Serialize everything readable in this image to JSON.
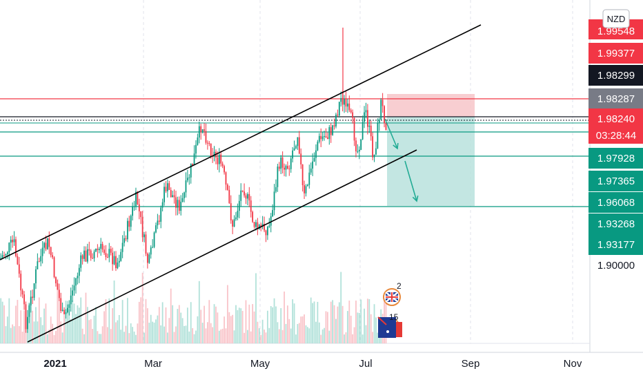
{
  "chart_data": {
    "type": "candlestick",
    "currency_badge": "NZD",
    "x_axis": {
      "tick_labels": [
        "2021",
        "Mar",
        "May",
        "Jul",
        "Sep",
        "Nov"
      ]
    },
    "price_labels": [
      {
        "text": "1.99548",
        "bg": "#f23645",
        "fg": "#ffffff"
      },
      {
        "text": "1.99377",
        "bg": "#f23645",
        "fg": "#ffffff"
      },
      {
        "text": "1.98299",
        "bg": "#131722",
        "fg": "#ffffff"
      },
      {
        "text": "1.98287",
        "bg": "#787b86",
        "fg": "#ffffff"
      },
      {
        "text": "1.98240",
        "bg": "#f23645",
        "fg": "#ffffff"
      },
      {
        "text": "03:28:44",
        "bg": "#f23645",
        "fg": "#ffffff"
      },
      {
        "text": "1.97928",
        "bg": "#089981",
        "fg": "#ffffff"
      },
      {
        "text": "1.97365",
        "bg": "#089981",
        "fg": "#ffffff"
      },
      {
        "text": "1.96068",
        "bg": "#089981",
        "fg": "#ffffff"
      },
      {
        "text": "1.93268",
        "bg": "#089981",
        "fg": "#ffffff"
      },
      {
        "text": "1.93177",
        "bg": "#089981",
        "fg": "#ffffff"
      },
      {
        "text": "1.90000",
        "bg": "#ffffff",
        "fg": "#131722"
      }
    ],
    "horizontal_levels": [
      {
        "name": "resistance-red",
        "color": "#f23645"
      },
      {
        "name": "current-price-black",
        "color": "#131722"
      },
      {
        "name": "level-teal-1",
        "color": "#089981"
      },
      {
        "name": "level-teal-2",
        "color": "#089981"
      },
      {
        "name": "level-teal-3",
        "color": "#089981"
      }
    ],
    "event_badges": [
      {
        "text": "2",
        "icon": "uk-flag-icon"
      },
      {
        "text": "15",
        "icon": "au-flag-icon"
      }
    ],
    "colors": {
      "up": "#089981",
      "down": "#f23645",
      "stop_zone": "#f7c6c9",
      "target_zone": "#b9e2dd",
      "grid": "#e0e3eb"
    }
  }
}
